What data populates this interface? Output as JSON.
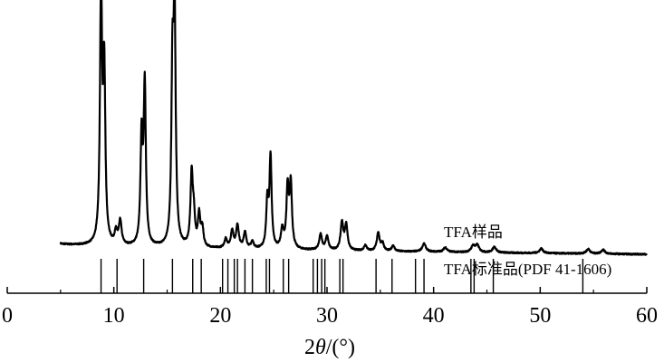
{
  "chart_data": {
    "type": "line",
    "xlabel_prefix": "2",
    "xlabel_symbol": "θ",
    "xlabel_suffix": "/(°)",
    "xlim": [
      0,
      60
    ],
    "x_ticks": [
      0,
      10,
      20,
      30,
      40,
      50,
      60
    ],
    "grid": false,
    "series": [
      {
        "name": "TFA样品",
        "style": "xrd-pattern",
        "color": "#000000",
        "baseline_start": [
          5,
          50
        ],
        "baseline_end": [
          60,
          4
        ],
        "peaks": [
          {
            "x": 8.8,
            "h": 1100,
            "w": 0.12
          },
          {
            "x": 9.1,
            "h": 740,
            "w": 0.12
          },
          {
            "x": 10.2,
            "h": 55,
            "w": 0.15
          },
          {
            "x": 10.6,
            "h": 105,
            "w": 0.15
          },
          {
            "x": 12.6,
            "h": 460,
            "w": 0.12
          },
          {
            "x": 12.9,
            "h": 700,
            "w": 0.12
          },
          {
            "x": 15.5,
            "h": 720,
            "w": 0.12
          },
          {
            "x": 15.7,
            "h": 980,
            "w": 0.12
          },
          {
            "x": 17.3,
            "h": 310,
            "w": 0.13
          },
          {
            "x": 17.5,
            "h": 120,
            "w": 0.13
          },
          {
            "x": 18.0,
            "h": 140,
            "w": 0.13
          },
          {
            "x": 18.3,
            "h": 80,
            "w": 0.13
          },
          {
            "x": 20.5,
            "h": 40,
            "w": 0.15
          },
          {
            "x": 21.1,
            "h": 75,
            "w": 0.15
          },
          {
            "x": 21.6,
            "h": 100,
            "w": 0.15
          },
          {
            "x": 22.3,
            "h": 70,
            "w": 0.15
          },
          {
            "x": 23.0,
            "h": 30,
            "w": 0.15
          },
          {
            "x": 24.4,
            "h": 200,
            "w": 0.12
          },
          {
            "x": 24.7,
            "h": 400,
            "w": 0.12
          },
          {
            "x": 25.8,
            "h": 80,
            "w": 0.15
          },
          {
            "x": 26.3,
            "h": 260,
            "w": 0.13
          },
          {
            "x": 26.6,
            "h": 280,
            "w": 0.13
          },
          {
            "x": 29.4,
            "h": 70,
            "w": 0.15
          },
          {
            "x": 30.0,
            "h": 60,
            "w": 0.15
          },
          {
            "x": 31.4,
            "h": 120,
            "w": 0.15
          },
          {
            "x": 31.8,
            "h": 110,
            "w": 0.15
          },
          {
            "x": 33.6,
            "h": 25,
            "w": 0.15
          },
          {
            "x": 34.8,
            "h": 80,
            "w": 0.15
          },
          {
            "x": 35.2,
            "h": 35,
            "w": 0.15
          },
          {
            "x": 36.2,
            "h": 25,
            "w": 0.15
          },
          {
            "x": 39.1,
            "h": 35,
            "w": 0.2
          },
          {
            "x": 41.1,
            "h": 20,
            "w": 0.2
          },
          {
            "x": 43.7,
            "h": 28,
            "w": 0.2
          },
          {
            "x": 44.1,
            "h": 30,
            "w": 0.2
          },
          {
            "x": 45.7,
            "h": 25,
            "w": 0.2
          },
          {
            "x": 50.1,
            "h": 20,
            "w": 0.2
          },
          {
            "x": 54.5,
            "h": 20,
            "w": 0.2
          },
          {
            "x": 55.9,
            "h": 18,
            "w": 0.2
          }
        ]
      },
      {
        "name": "TFA标准品(PDF 41-1606)",
        "style": "stick-pattern",
        "color": "#000000",
        "stick_positions": [
          8.8,
          10.3,
          12.8,
          15.5,
          17.4,
          18.2,
          20.2,
          20.7,
          21.3,
          21.6,
          22.3,
          23.0,
          24.3,
          24.6,
          25.9,
          26.4,
          28.7,
          29.1,
          29.5,
          29.8,
          31.2,
          31.5,
          34.6,
          36.1,
          38.3,
          39.1,
          43.5,
          43.8,
          45.6,
          54.0
        ]
      }
    ]
  }
}
